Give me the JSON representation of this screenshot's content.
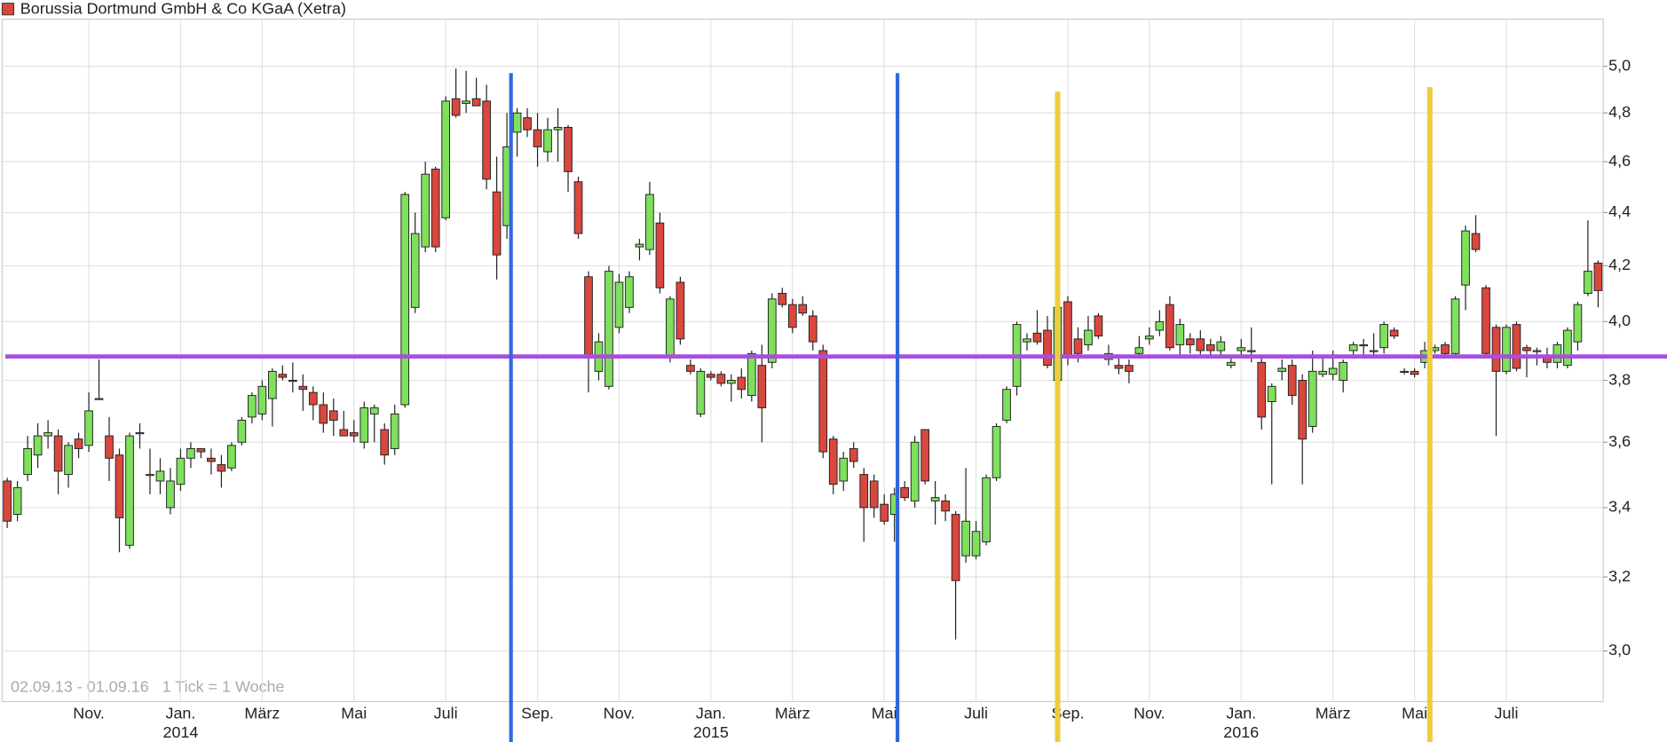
{
  "chart_data": {
    "type": "candlestick",
    "title": "Borussia Dortmund GmbH & Co KGaA (Xetra)",
    "footnote": "02.09.13 - 01.09.16   1 Tick = 1 Woche",
    "categories": [
      null,
      null,
      null,
      null,
      null,
      null,
      null,
      null,
      "Nov.",
      null,
      null,
      null,
      null,
      null,
      null,
      null,
      null,
      "Jan.",
      null,
      null,
      null,
      null,
      null,
      null,
      null,
      "März",
      null,
      null,
      null,
      null,
      null,
      null,
      null,
      null,
      "Mai",
      null,
      null,
      null,
      null,
      null,
      null,
      null,
      null,
      "Juli",
      null,
      null,
      null,
      null,
      null,
      null,
      null,
      null,
      "Sep.",
      null,
      null,
      null,
      null,
      null,
      null,
      null,
      "Nov.",
      null,
      null,
      null,
      null,
      null,
      null,
      null,
      null,
      "Jan.",
      null,
      null,
      null,
      null,
      null,
      null,
      null,
      "März",
      null,
      null,
      null,
      null,
      null,
      null,
      null,
      null,
      "Mai",
      null,
      null,
      null,
      null,
      null,
      null,
      null,
      null,
      "Juli",
      null,
      null,
      null,
      null,
      null,
      null,
      null,
      null,
      "Sep.",
      null,
      null,
      null,
      null,
      null,
      null,
      null,
      "Nov.",
      null,
      null,
      null,
      null,
      null,
      null,
      null,
      null,
      "Jan.",
      null,
      null,
      null,
      null,
      null,
      null,
      null,
      null,
      "März",
      null,
      null,
      null,
      null,
      null,
      null,
      null,
      "Mai",
      null,
      null,
      null,
      null,
      null,
      null,
      null,
      null,
      "Juli",
      null,
      null,
      null,
      null,
      null,
      null,
      null,
      null,
      null
    ],
    "year_labels": [
      null,
      null,
      null,
      null,
      null,
      null,
      null,
      null,
      null,
      null,
      null,
      null,
      null,
      null,
      null,
      null,
      null,
      "2014",
      null,
      null,
      null,
      null,
      null,
      null,
      null,
      null,
      null,
      null,
      null,
      null,
      null,
      null,
      null,
      null,
      null,
      null,
      null,
      null,
      null,
      null,
      null,
      null,
      null,
      null,
      null,
      null,
      null,
      null,
      null,
      null,
      null,
      null,
      null,
      null,
      null,
      null,
      null,
      null,
      null,
      null,
      null,
      null,
      null,
      null,
      null,
      null,
      null,
      null,
      null,
      "2015",
      null,
      null,
      null,
      null,
      null,
      null,
      null,
      null,
      null,
      null,
      null,
      null,
      null,
      null,
      null,
      null,
      null,
      null,
      null,
      null,
      null,
      null,
      null,
      null,
      null,
      null,
      null,
      null,
      null,
      null,
      null,
      null,
      null,
      null,
      null,
      null,
      null,
      null,
      null,
      null,
      null,
      null,
      null,
      null,
      null,
      null,
      null,
      null,
      null,
      null,
      null,
      "2016",
      null,
      null,
      null,
      null,
      null,
      null,
      null,
      null,
      null,
      null,
      null,
      null,
      null,
      null,
      null,
      null,
      null,
      null,
      null,
      null,
      null,
      null,
      null,
      null,
      null,
      null,
      null,
      null,
      null,
      null,
      null,
      null,
      null,
      null,
      null,
      null,
      null,
      null,
      null
    ],
    "open": [
      3.48,
      3.38,
      3.5,
      3.56,
      3.62,
      3.62,
      3.5,
      3.61,
      3.59,
      3.74,
      3.62,
      3.56,
      3.29,
      3.63,
      3.5,
      3.48,
      3.4,
      3.47,
      3.55,
      3.58,
      3.55,
      3.53,
      3.52,
      3.6,
      3.68,
      3.69,
      3.74,
      3.82,
      3.8,
      3.78,
      3.76,
      3.72,
      3.7,
      3.64,
      3.63,
      3.6,
      3.69,
      3.64,
      3.58,
      3.72,
      4.05,
      4.27,
      4.57,
      4.38,
      4.86,
      4.84,
      4.86,
      4.85,
      4.48,
      4.35,
      4.72,
      4.78,
      4.73,
      4.64,
      4.73,
      4.74,
      4.52,
      4.16,
      3.83,
      3.78,
      3.98,
      4.05,
      4.27,
      4.26,
      4.36,
      3.88,
      4.14,
      3.85,
      3.69,
      3.82,
      3.82,
      3.79,
      3.81,
      3.75,
      3.85,
      3.86,
      4.1,
      4.06,
      4.06,
      4.02,
      3.9,
      3.61,
      3.48,
      3.58,
      3.5,
      3.48,
      3.41,
      3.38,
      3.46,
      3.42,
      3.64,
      3.42,
      3.42,
      3.38,
      3.26,
      3.26,
      3.3,
      3.49,
      3.67,
      3.78,
      3.93,
      3.96,
      3.97,
      3.8,
      4.07,
      3.94,
      3.92,
      4.02,
      3.87,
      3.85,
      3.85,
      3.89,
      3.94,
      3.97,
      4.06,
      3.92,
      3.94,
      3.94,
      3.92,
      3.9,
      3.85,
      3.9,
      3.9,
      3.86,
      3.73,
      3.83,
      3.85,
      3.8,
      3.65,
      3.82,
      3.82,
      3.8,
      3.9,
      3.92,
      3.9,
      3.91,
      3.97,
      3.83,
      3.83,
      3.86,
      3.9,
      3.92,
      3.89,
      4.13,
      4.32,
      4.12,
      3.98,
      3.83,
      3.99,
      3.91,
      3.9,
      3.88,
      3.86,
      3.85,
      3.93,
      4.1,
      4.21
    ],
    "high": [
      3.49,
      3.48,
      3.62,
      3.66,
      3.67,
      3.64,
      3.6,
      3.63,
      3.76,
      3.87,
      3.68,
      3.58,
      3.63,
      3.66,
      3.58,
      3.55,
      3.52,
      3.58,
      3.6,
      3.58,
      3.58,
      3.56,
      3.6,
      3.68,
      3.76,
      3.8,
      3.84,
      3.85,
      3.86,
      3.82,
      3.78,
      3.76,
      3.74,
      3.7,
      3.67,
      3.73,
      3.72,
      3.66,
      3.72,
      4.48,
      4.4,
      4.6,
      4.58,
      4.87,
      4.99,
      4.98,
      4.95,
      4.92,
      4.62,
      4.8,
      4.82,
      4.82,
      4.8,
      4.78,
      4.82,
      4.75,
      4.54,
      4.18,
      3.96,
      4.2,
      4.17,
      4.18,
      4.3,
      4.52,
      4.4,
      4.09,
      4.16,
      3.87,
      3.84,
      3.83,
      3.83,
      3.82,
      3.84,
      3.9,
      3.92,
      4.1,
      4.12,
      4.08,
      4.09,
      4.04,
      3.92,
      3.62,
      3.57,
      3.6,
      3.52,
      3.5,
      3.44,
      3.46,
      3.48,
      3.62,
      3.64,
      3.48,
      3.44,
      3.39,
      3.52,
      3.36,
      3.5,
      3.66,
      3.78,
      4.0,
      3.96,
      4.04,
      4.02,
      4.05,
      4.09,
      3.98,
      4.02,
      4.03,
      3.92,
      3.88,
      3.87,
      3.95,
      3.98,
      4.04,
      4.09,
      4.01,
      3.96,
      3.97,
      3.94,
      3.95,
      3.88,
      3.94,
      3.98,
      3.88,
      3.79,
      3.87,
      3.87,
      3.82,
      3.9,
      3.88,
      3.9,
      3.87,
      3.93,
      3.94,
      3.96,
      4.0,
      3.98,
      3.84,
      3.84,
      3.93,
      3.92,
      3.93,
      4.09,
      4.35,
      4.39,
      4.13,
      3.99,
      3.99,
      4.0,
      3.92,
      3.91,
      3.91,
      3.93,
      3.98,
      4.07,
      4.37,
      4.22
    ],
    "low": [
      3.34,
      3.36,
      3.48,
      3.52,
      3.58,
      3.44,
      3.46,
      3.55,
      3.57,
      3.74,
      3.48,
      3.27,
      3.28,
      3.58,
      3.44,
      3.44,
      3.38,
      3.45,
      3.52,
      3.55,
      3.5,
      3.46,
      3.51,
      3.59,
      3.66,
      3.67,
      3.65,
      3.8,
      3.76,
      3.7,
      3.67,
      3.63,
      3.62,
      3.62,
      3.6,
      3.58,
      3.6,
      3.53,
      3.56,
      3.71,
      4.03,
      4.25,
      4.25,
      4.37,
      4.78,
      4.8,
      4.83,
      4.49,
      4.15,
      4.3,
      4.62,
      4.7,
      4.58,
      4.6,
      4.6,
      4.48,
      4.3,
      3.76,
      3.8,
      3.77,
      3.96,
      4.03,
      4.22,
      4.24,
      4.1,
      3.86,
      3.92,
      3.82,
      3.68,
      3.8,
      3.78,
      3.73,
      3.74,
      3.73,
      3.6,
      3.84,
      4.05,
      3.96,
      4.02,
      3.9,
      3.55,
      3.44,
      3.45,
      3.52,
      3.3,
      3.37,
      3.35,
      3.3,
      3.42,
      3.4,
      3.47,
      3.35,
      3.36,
      3.03,
      3.24,
      3.25,
      3.29,
      3.48,
      3.66,
      3.75,
      3.9,
      3.92,
      3.84,
      3.78,
      3.85,
      3.86,
      3.9,
      3.94,
      3.85,
      3.82,
      3.79,
      3.88,
      3.92,
      3.95,
      3.9,
      3.88,
      3.89,
      3.88,
      3.88,
      3.88,
      3.84,
      3.88,
      3.86,
      3.64,
      3.47,
      3.8,
      3.72,
      3.47,
      3.63,
      3.81,
      3.8,
      3.76,
      3.88,
      3.88,
      3.88,
      3.89,
      3.94,
      3.82,
      3.81,
      3.84,
      3.89,
      3.88,
      3.88,
      4.04,
      4.25,
      3.88,
      3.62,
      3.82,
      3.83,
      3.81,
      3.85,
      3.84,
      3.84,
      3.84,
      3.9,
      4.09,
      4.05
    ],
    "close": [
      3.36,
      3.46,
      3.58,
      3.62,
      3.63,
      3.51,
      3.59,
      3.58,
      3.7,
      3.74,
      3.55,
      3.37,
      3.62,
      3.63,
      3.5,
      3.51,
      3.48,
      3.55,
      3.58,
      3.57,
      3.54,
      3.51,
      3.59,
      3.67,
      3.75,
      3.78,
      3.83,
      3.81,
      3.8,
      3.77,
      3.72,
      3.66,
      3.67,
      3.62,
      3.62,
      3.71,
      3.71,
      3.56,
      3.69,
      4.47,
      4.32,
      4.55,
      4.27,
      4.85,
      4.79,
      4.85,
      4.83,
      4.53,
      4.24,
      4.66,
      4.8,
      4.73,
      4.66,
      4.73,
      4.74,
      4.56,
      4.32,
      3.88,
      3.93,
      4.18,
      4.14,
      4.16,
      4.28,
      4.47,
      4.12,
      4.08,
      3.94,
      3.83,
      3.83,
      3.81,
      3.79,
      3.8,
      3.77,
      3.89,
      3.71,
      4.08,
      4.06,
      3.98,
      4.03,
      3.93,
      3.57,
      3.47,
      3.55,
      3.54,
      3.4,
      3.4,
      3.36,
      3.44,
      3.43,
      3.6,
      3.48,
      3.43,
      3.39,
      3.19,
      3.36,
      3.33,
      3.49,
      3.65,
      3.77,
      3.99,
      3.94,
      3.93,
      3.85,
      4.05,
      3.88,
      3.89,
      3.97,
      3.95,
      3.89,
      3.84,
      3.83,
      3.91,
      3.95,
      4.0,
      3.91,
      3.99,
      3.92,
      3.9,
      3.9,
      3.93,
      3.86,
      3.91,
      3.9,
      3.68,
      3.78,
      3.84,
      3.75,
      3.61,
      3.83,
      3.83,
      3.84,
      3.86,
      3.92,
      3.92,
      3.9,
      3.99,
      3.95,
      3.83,
      3.82,
      3.9,
      3.91,
      3.89,
      4.08,
      4.33,
      4.26,
      3.89,
      3.83,
      3.98,
      3.84,
      3.9,
      3.9,
      3.86,
      3.92,
      3.97,
      4.06,
      4.18,
      4.11
    ],
    "up_color": "#7ee05c",
    "down_color": "#d9473e",
    "ylim": [
      2.87,
      5.21
    ],
    "log_scale": true,
    "grid": true,
    "yticks": [
      {
        "value": 3.0,
        "label": "3,0"
      },
      {
        "value": 3.2,
        "label": "3,2"
      },
      {
        "value": 3.4,
        "label": "3,4"
      },
      {
        "value": 3.6,
        "label": "3,6"
      },
      {
        "value": 3.8,
        "label": "3,8"
      },
      {
        "value": 4.0,
        "label": "4,0"
      },
      {
        "value": 4.2,
        "label": "4,2"
      },
      {
        "value": 4.4,
        "label": "4,4"
      },
      {
        "value": 4.6,
        "label": "4,6"
      },
      {
        "value": 4.8,
        "label": "4,8"
      },
      {
        "value": 5.0,
        "label": "5,0"
      }
    ],
    "hlines": [
      {
        "value": 3.88,
        "color": "#a94fdc"
      }
    ],
    "vlines": [
      {
        "x": 49.4,
        "top": 4.97,
        "color": "#3366dd"
      },
      {
        "x": 87.3,
        "top": 4.97,
        "color": "#3366dd"
      },
      {
        "x": 103.0,
        "top": 4.89,
        "color": "#efcc3f"
      },
      {
        "x": 139.5,
        "top": 4.91,
        "color": "#efcc3f"
      }
    ]
  }
}
